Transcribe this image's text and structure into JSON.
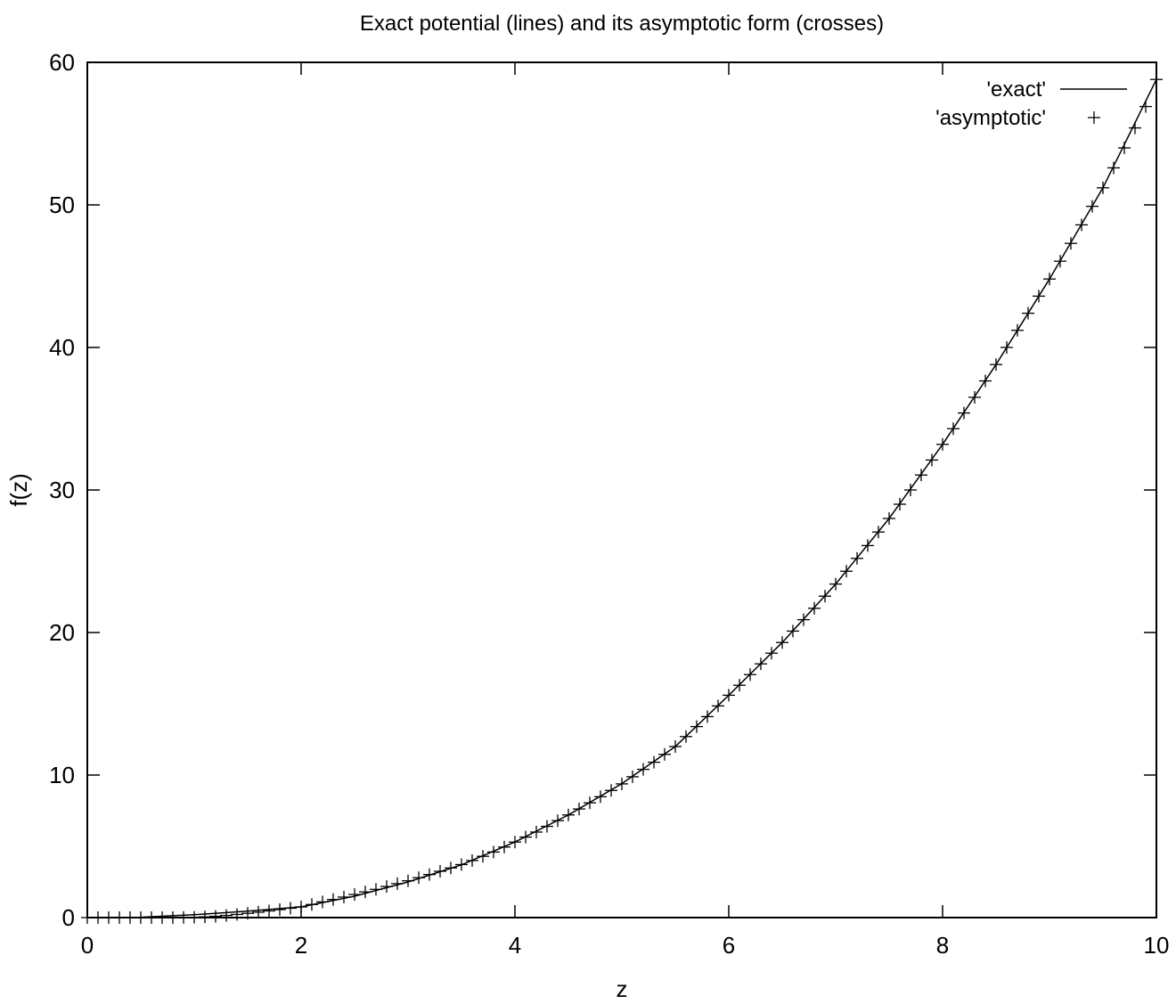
{
  "chart_data": {
    "type": "line",
    "title": "Exact potential (lines) and its asymptotic form (crosses)",
    "xlabel": "z",
    "ylabel": "f(z)",
    "xlim": [
      0,
      10
    ],
    "ylim": [
      0,
      60
    ],
    "x_ticks": [
      "0",
      "2",
      "4",
      "6",
      "8",
      "10"
    ],
    "y_ticks": [
      "0",
      "10",
      "20",
      "30",
      "40",
      "50",
      "60"
    ],
    "grid": false,
    "legend_position": "top-right",
    "series": [
      {
        "name": "'exact'",
        "style": "line",
        "x": [
          0,
          0.5,
          1,
          1.5,
          2,
          2.5,
          3,
          3.5,
          4,
          4.5,
          5,
          5.5,
          6,
          6.5,
          7,
          7.5,
          8,
          8.5,
          9,
          9.5,
          10
        ],
        "y": [
          0,
          0.02,
          0.2,
          0.45,
          0.75,
          1.5,
          2.5,
          3.7,
          5.3,
          7.2,
          9.4,
          12.0,
          15.6,
          19.3,
          23.4,
          28.0,
          33.2,
          38.8,
          44.8,
          51.2,
          58.8
        ]
      },
      {
        "name": "'asymptotic'",
        "style": "crosses",
        "x": [
          0,
          0.1,
          0.2,
          0.3,
          0.4,
          0.5,
          0.6,
          0.7,
          0.8,
          0.9,
          1,
          1.1,
          1.2,
          1.3,
          1.4,
          1.5,
          1.6,
          1.7,
          1.8,
          1.9,
          2,
          2.1,
          2.2,
          2.3,
          2.4,
          2.5,
          2.6,
          2.7,
          2.8,
          2.9,
          3,
          3.1,
          3.2,
          3.3,
          3.4,
          3.5,
          3.6,
          3.7,
          3.8,
          3.9,
          4,
          4.1,
          4.2,
          4.3,
          4.4,
          4.5,
          4.6,
          4.7,
          4.8,
          4.9,
          5,
          5.1,
          5.2,
          5.3,
          5.4,
          5.5,
          5.6,
          5.7,
          5.8,
          5.9,
          6,
          6.1,
          6.2,
          6.3,
          6.4,
          6.5,
          6.6,
          6.7,
          6.8,
          6.9,
          7,
          7.1,
          7.2,
          7.3,
          7.4,
          7.5,
          7.6,
          7.7,
          7.8,
          7.9,
          8,
          8.1,
          8.2,
          8.3,
          8.4,
          8.5,
          8.6,
          8.7,
          8.8,
          8.9,
          9,
          9.1,
          9.2,
          9.3,
          9.4,
          9.5,
          9.6,
          9.7,
          9.8,
          9.9,
          10
        ],
        "y": [
          0,
          0,
          0,
          0,
          0,
          0,
          0,
          0,
          0,
          0.01,
          0.02,
          0.05,
          0.09,
          0.15,
          0.22,
          0.3,
          0.38,
          0.47,
          0.56,
          0.66,
          0.75,
          0.92,
          1.1,
          1.27,
          1.44,
          1.62,
          1.8,
          1.98,
          2.18,
          2.38,
          2.58,
          2.8,
          3.02,
          3.25,
          3.48,
          3.72,
          4.0,
          4.3,
          4.6,
          4.95,
          5.3,
          5.65,
          6.0,
          6.4,
          6.8,
          7.2,
          7.62,
          8.05,
          8.48,
          8.92,
          9.38,
          9.88,
          10.4,
          10.9,
          11.45,
          12.0,
          12.7,
          13.4,
          14.1,
          14.85,
          15.6,
          16.3,
          17.05,
          17.8,
          18.55,
          19.3,
          20.1,
          20.9,
          21.7,
          22.55,
          23.4,
          24.3,
          25.2,
          26.1,
          27.05,
          28.0,
          29.0,
          30.0,
          31.05,
          32.1,
          33.2,
          34.3,
          35.4,
          36.5,
          37.65,
          38.8,
          40.0,
          41.2,
          42.4,
          43.6,
          44.8,
          46.05,
          47.3,
          48.6,
          49.9,
          51.2,
          52.6,
          54.0,
          55.4,
          56.9,
          58.8
        ]
      }
    ]
  }
}
